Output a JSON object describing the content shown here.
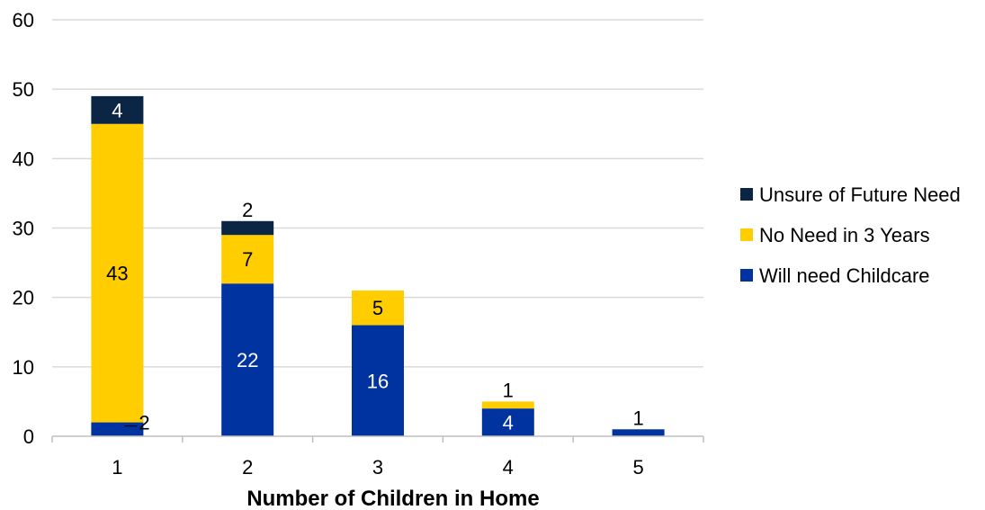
{
  "chart_data": {
    "type": "bar",
    "stacked": true,
    "title": "",
    "xlabel": "Number of Children in Home",
    "ylabel": "",
    "ylim": [
      0,
      60
    ],
    "yticks": [
      0,
      10,
      20,
      30,
      40,
      50,
      60
    ],
    "categories": [
      "1",
      "2",
      "3",
      "4",
      "5"
    ],
    "series": [
      {
        "name": "Will need Childcare",
        "color": "#0033a0",
        "values": [
          2,
          22,
          16,
          4,
          1
        ],
        "labels": [
          "2",
          "22",
          "16",
          "4",
          "1"
        ]
      },
      {
        "name": "No Need in 3 Years",
        "color": "#ffcd00",
        "values": [
          43,
          7,
          5,
          1,
          0
        ],
        "labels": [
          "43",
          "7",
          "5",
          "1",
          ""
        ]
      },
      {
        "name": "Unsure of Future Need",
        "color": "#0b2545",
        "values": [
          4,
          2,
          0,
          0,
          0
        ],
        "labels": [
          "4",
          "2",
          "",
          "",
          ""
        ]
      }
    ],
    "grid": true,
    "legend": "right",
    "legend_order": [
      "Unsure of Future Need",
      "No Need in 3 Years",
      "Will need Childcare"
    ]
  }
}
